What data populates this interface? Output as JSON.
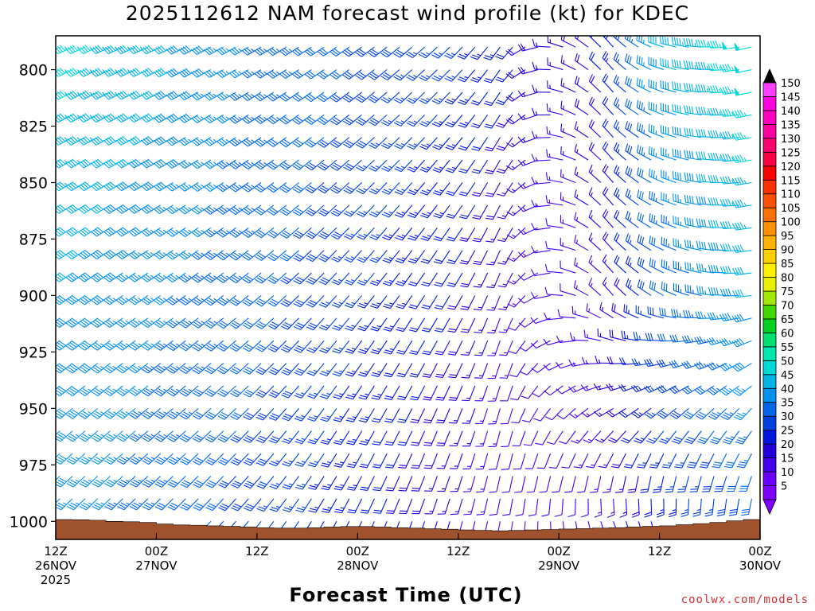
{
  "chart_data": {
    "type": "wind_barb_time_height",
    "title": "2025112612 NAM forecast wind profile (kt) for KDEC",
    "xlabel": "Forecast Time (UTC)",
    "ylabel": "",
    "y_axis": {
      "ticks": [
        800,
        825,
        850,
        875,
        900,
        925,
        950,
        975,
        1000
      ],
      "range": [
        785,
        1008
      ],
      "inverted": true
    },
    "x_axis": {
      "range_hours": [
        0,
        84
      ],
      "ticks": [
        {
          "hour": 0,
          "lines": [
            "12Z",
            "26NOV",
            "2025"
          ]
        },
        {
          "hour": 12,
          "lines": [
            "00Z",
            "27NOV"
          ]
        },
        {
          "hour": 24,
          "lines": [
            "12Z"
          ]
        },
        {
          "hour": 36,
          "lines": [
            "00Z",
            "28NOV"
          ]
        },
        {
          "hour": 48,
          "lines": [
            "12Z"
          ]
        },
        {
          "hour": 60,
          "lines": [
            "00Z",
            "29NOV"
          ]
        },
        {
          "hour": 72,
          "lines": [
            "12Z"
          ]
        },
        {
          "hour": 84,
          "lines": [
            "00Z",
            "30NOV"
          ]
        }
      ]
    },
    "colorbar": {
      "levels": [
        5,
        10,
        15,
        20,
        25,
        30,
        35,
        40,
        45,
        50,
        55,
        60,
        65,
        70,
        75,
        80,
        85,
        90,
        95,
        100,
        105,
        110,
        115,
        120,
        125,
        130,
        135,
        140,
        145,
        150
      ],
      "colors": [
        "#8000ff",
        "#6a00ff",
        "#4400ee",
        "#2200dd",
        "#0018dd",
        "#0040e0",
        "#0068e8",
        "#0090f0",
        "#00b4e8",
        "#00d8d8",
        "#00e8b0",
        "#00e070",
        "#00d020",
        "#40d800",
        "#a0e800",
        "#e8f000",
        "#fff000",
        "#ffd000",
        "#ffb000",
        "#ff9000",
        "#ff7000",
        "#ff5000",
        "#ff3000",
        "#ff0000",
        "#ff0040",
        "#ff0070",
        "#ff00a0",
        "#ff00c0",
        "#ff00e0",
        "#ff40ff"
      ],
      "arrows": true
    },
    "surface_pressure": {
      "hours": [
        0,
        2,
        4,
        6,
        8,
        10,
        12,
        14,
        16,
        18,
        20,
        22,
        24,
        26,
        28,
        30,
        32,
        34,
        36,
        38,
        40,
        42,
        44,
        46,
        48,
        50,
        52,
        54,
        56,
        58,
        60,
        62,
        64,
        66,
        68,
        70,
        72,
        74,
        76,
        78,
        80,
        82,
        84
      ],
      "values": [
        999.2,
        999.3,
        999.5,
        1000,
        1000.2,
        1000.5,
        1001.2,
        1001.6,
        1001.7,
        1002,
        1002.2,
        1002.5,
        1002.8,
        1003,
        1003,
        1002.8,
        1002.5,
        1002.3,
        1002.3,
        1002.5,
        1002.8,
        1003,
        1003.3,
        1003.5,
        1003.8,
        1004,
        1004.2,
        1004,
        1003.8,
        1003.6,
        1003.4,
        1003.2,
        1003,
        1002.8,
        1002.5,
        1002.2,
        1002,
        1001.5,
        1001,
        1000.5,
        999.8,
        999.2,
        998.8
      ],
      "color": "#a0522d"
    },
    "wind_barbs": {
      "hour_step": 1.5,
      "pressure_levels": [
        790,
        800,
        810,
        820,
        830,
        840,
        850,
        860,
        870,
        880,
        890,
        900,
        910,
        920,
        930,
        940,
        950,
        960,
        970,
        980,
        990,
        1000
      ],
      "field_note": "direction in degrees (from), speed in kt; values interpolated from visual estimates",
      "keyframes": {
        "hours": [
          0,
          12,
          24,
          36,
          48,
          54,
          60,
          66,
          72,
          84
        ],
        "low": {
          "dir": [
            225,
            225,
            220,
            205,
            195,
            190,
            175,
            160,
            165,
            185
          ],
          "spd": [
            38,
            33,
            28,
            22,
            15,
            10,
            10,
            14,
            22,
            30
          ]
        },
        "mid": {
          "dir": [
            235,
            235,
            230,
            220,
            210,
            200,
            270,
            320,
            300,
            260
          ],
          "spd": [
            40,
            36,
            32,
            26,
            20,
            14,
            10,
            15,
            30,
            42
          ]
        },
        "high": {
          "dir": [
            245,
            245,
            240,
            235,
            225,
            215,
            285,
            320,
            290,
            255
          ],
          "spd": [
            48,
            42,
            35,
            30,
            26,
            22,
            16,
            22,
            40,
            50
          ]
        }
      }
    },
    "credit": "coolwx.com/models"
  }
}
